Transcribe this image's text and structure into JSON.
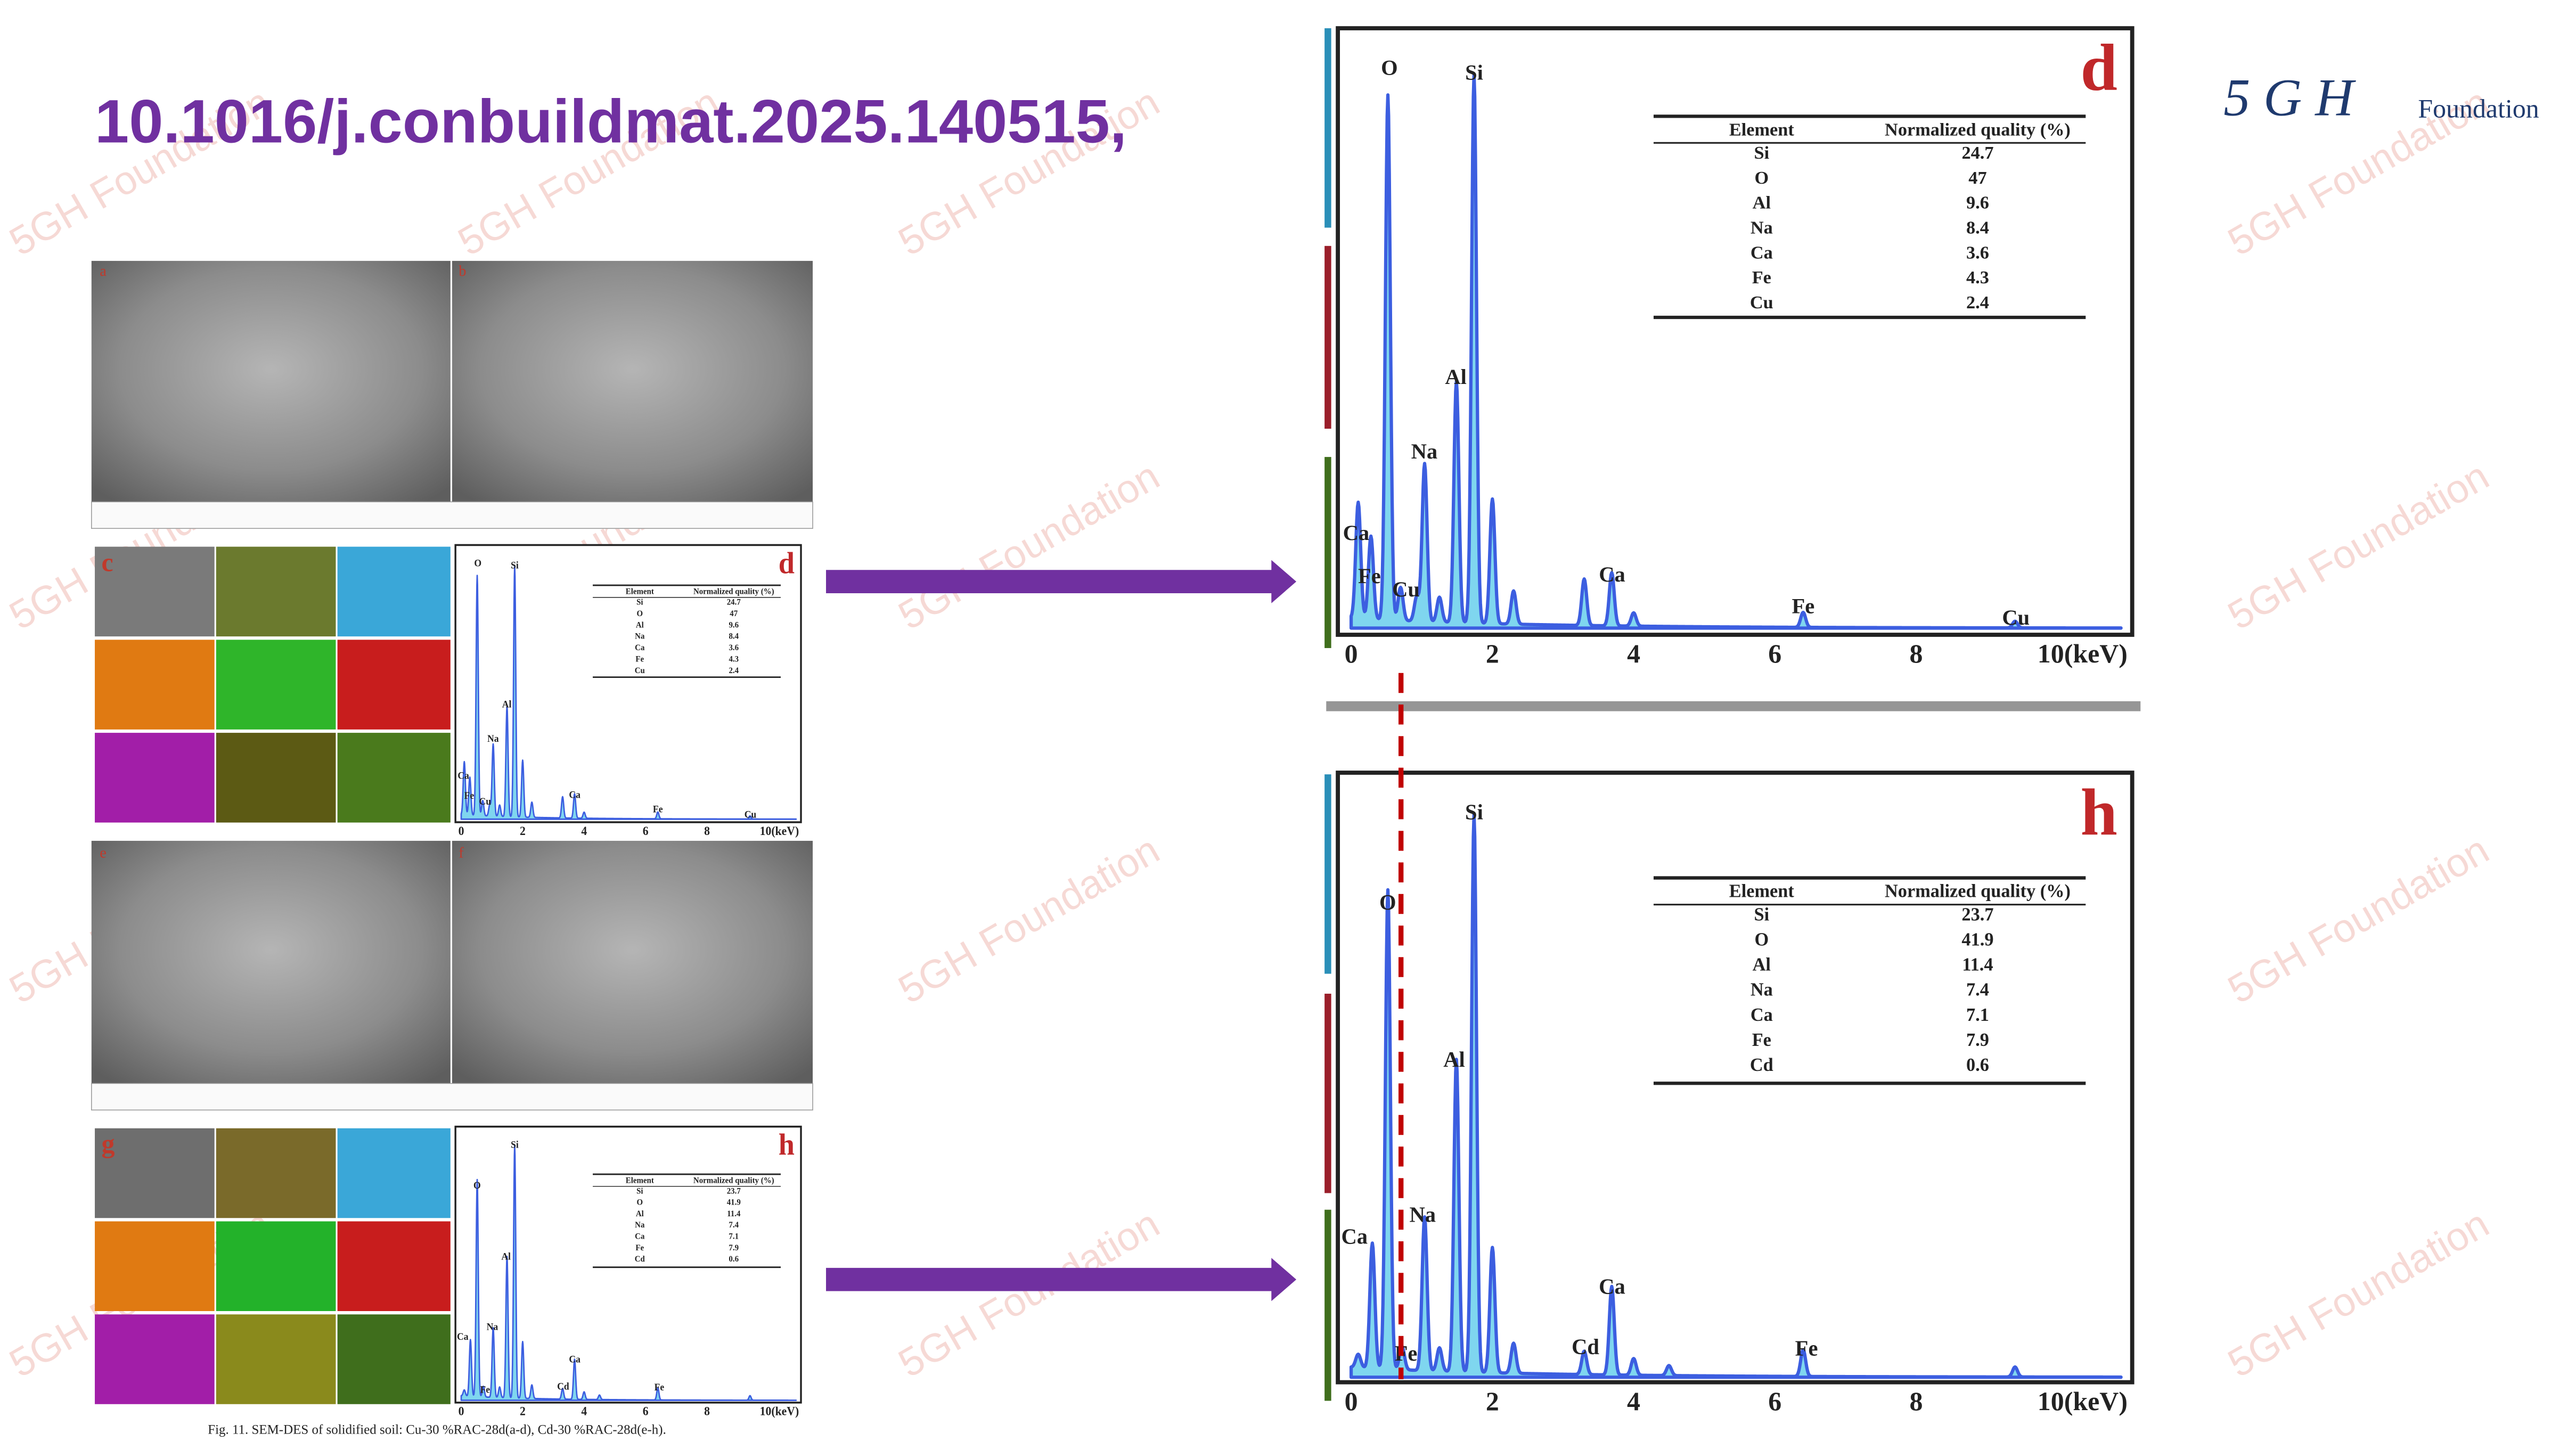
{
  "title": "10.1016/j.conbuildmat.2025.140515,",
  "logo": {
    "mark": "5 G H",
    "name": "Foundation"
  },
  "watermark": "5GH Foundation",
  "figure": {
    "panel_letters": [
      "a",
      "b",
      "c",
      "e",
      "f",
      "g"
    ],
    "caption": "Fig. 11. SEM-DES of solidified soil: Cu-30 %RAC-28d(a-d), Cd-30 %RAC-28d(e-h)."
  },
  "spectra": [
    {
      "letter": "d",
      "peaks": [
        "O",
        "Si",
        "Al",
        "Na",
        "Ca",
        "Fe",
        "Cu",
        "Ca",
        "Fe",
        "Cu"
      ],
      "ticks": [
        "0",
        "2",
        "4",
        "6",
        "8",
        "10(keV)"
      ],
      "table": {
        "header": [
          "Element",
          "Normalized quality (%)"
        ],
        "rows": [
          [
            "Si",
            "24.7"
          ],
          [
            "O",
            "47"
          ],
          [
            "Al",
            "9.6"
          ],
          [
            "Na",
            "8.4"
          ],
          [
            "Ca",
            "3.6"
          ],
          [
            "Fe",
            "4.3"
          ],
          [
            "Cu",
            "2.4"
          ]
        ]
      }
    },
    {
      "letter": "h",
      "peaks": [
        "Si",
        "O",
        "Al",
        "Na",
        "Ca",
        "Ca",
        "Fe",
        "Cd",
        "Fe"
      ],
      "ticks": [
        "0",
        "2",
        "4",
        "6",
        "8",
        "10(keV)"
      ],
      "table": {
        "header": [
          "Element",
          "Normalized quality (%)"
        ],
        "rows": [
          [
            "Si",
            "23.7"
          ],
          [
            "O",
            "41.9"
          ],
          [
            "Al",
            "11.4"
          ],
          [
            "Na",
            "7.4"
          ],
          [
            "Ca",
            "7.1"
          ],
          [
            "Fe",
            "7.9"
          ],
          [
            "Cd",
            "0.6"
          ]
        ]
      }
    }
  ]
}
